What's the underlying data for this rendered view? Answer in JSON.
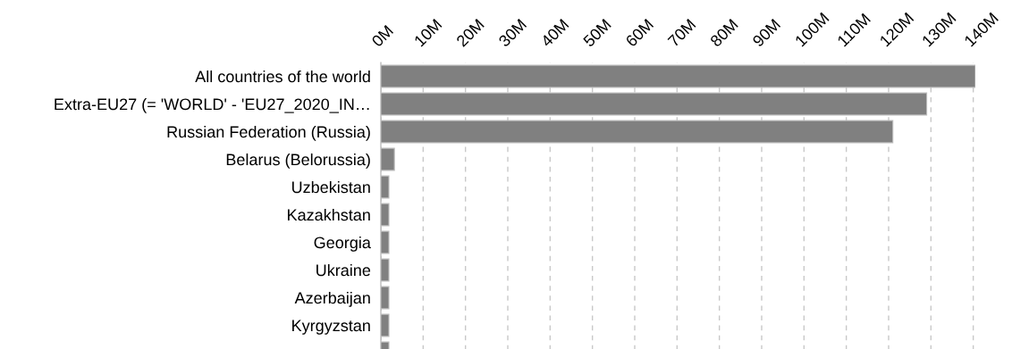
{
  "chart_data": {
    "type": "bar",
    "orientation": "horizontal",
    "categories": [
      "All countries of the world",
      "Extra-EU27 (= 'WORLD' - 'EU27_2020_IN…",
      "Russian Federation (Russia)",
      "Belarus (Belorussia)",
      "Uzbekistan",
      "Kazakhstan",
      "Georgia",
      "Ukraine",
      "Azerbaijan",
      "Kyrgyzstan",
      null
    ],
    "values": [
      140.5,
      129,
      121,
      3.2,
      1.9,
      1.9,
      1.9,
      1.9,
      1.9,
      1.9,
      1.9
    ],
    "color": "#808080",
    "xlim": [
      0,
      140.5
    ],
    "xticks": [
      {
        "value": 0,
        "label": "0M"
      },
      {
        "value": 10,
        "label": "10M"
      },
      {
        "value": 20,
        "label": "20M"
      },
      {
        "value": 30,
        "label": "30M"
      },
      {
        "value": 40,
        "label": "40M"
      },
      {
        "value": 50,
        "label": "50M"
      },
      {
        "value": 60,
        "label": "60M"
      },
      {
        "value": 70,
        "label": "70M"
      },
      {
        "value": 80,
        "label": "80M"
      },
      {
        "value": 90,
        "label": "90M"
      },
      {
        "value": 100,
        "label": "100M"
      },
      {
        "value": 110,
        "label": "110M"
      },
      {
        "value": 120,
        "label": "120M"
      },
      {
        "value": 130,
        "label": "130M"
      },
      {
        "value": 140,
        "label": "140M"
      }
    ],
    "grid": "x",
    "legend": false
  }
}
